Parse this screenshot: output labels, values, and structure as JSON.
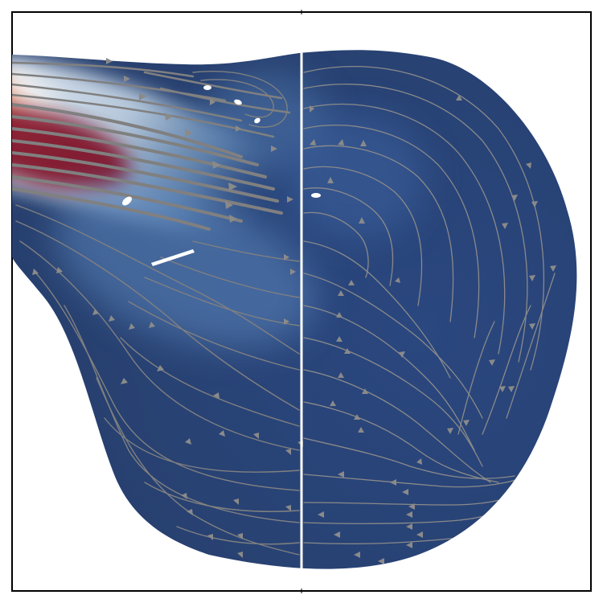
{
  "figure": {
    "type": "flow-field-streamline-plot",
    "colormap": "cool-to-warm",
    "colors": {
      "frame": "#000000",
      "background": "#ffffff",
      "field_low": "#2b4a86",
      "field_mid": "#f4f4f4",
      "field_high": "#7a0018",
      "streamline": "#808080",
      "arrow": "#8a8a8a",
      "divider": "#ffffff"
    },
    "elements": {
      "left_panel": "streamlines-left",
      "right_panel": "streamlines-right",
      "divider": "vertical-divider-line",
      "holes": [
        "hole-small-1",
        "hole-small-2",
        "hole-small-3",
        "hole-mid",
        "hole-right",
        "slit-wake"
      ]
    }
  }
}
